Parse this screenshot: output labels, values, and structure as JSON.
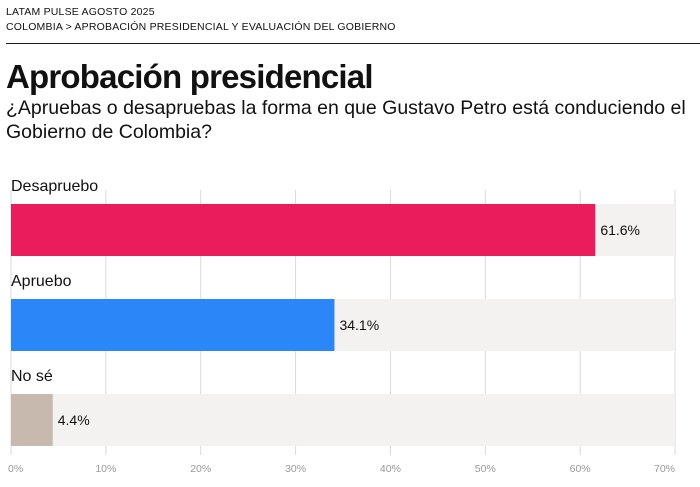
{
  "header": {
    "line1": "LATAM PULSE AGOSTO 2025",
    "breadcrumb": "COLOMBIA > APROBACIÓN PRESIDENCIAL Y EVALUACIÓN DEL GOBIERNO"
  },
  "chart_data": {
    "type": "bar",
    "orientation": "horizontal",
    "title": "Aprobación presidencial",
    "subtitle": "¿Apruebas o desapruebas la forma en que Gustavo Petro está conduciendo el Gobierno de Colombia?",
    "categories": [
      "Desapruebo",
      "Apruebo",
      "No sé"
    ],
    "values": [
      61.6,
      34.1,
      4.4
    ],
    "value_labels": [
      "61.6%",
      "34.1%",
      "4.4%"
    ],
    "colors": [
      "#ea1c5c",
      "#2b87f7",
      "#c7b9ad"
    ],
    "track_color": "#f3f2f0",
    "xlim": [
      0,
      70
    ],
    "ticks": [
      "0%",
      "10%",
      "20%",
      "30%",
      "40%",
      "50%",
      "60%",
      "70%"
    ],
    "grid": true,
    "legend": "none"
  }
}
